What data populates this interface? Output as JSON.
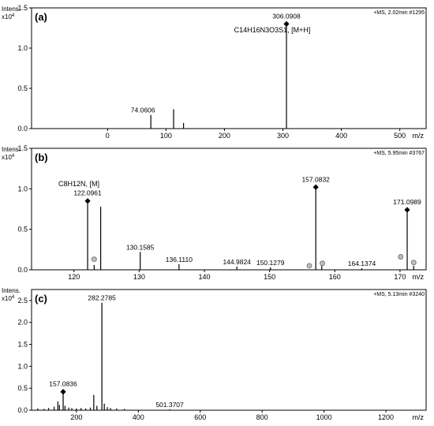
{
  "chart_data": [
    {
      "type": "bar",
      "panel_label": "(a)",
      "ylabel": "Intens.",
      "yscale": "x10",
      "yscale_exp": "4",
      "xlabel": "m/z",
      "info": "+MS, 2.02min #1295",
      "formula": "C14H16N3O3S1, [M+H]",
      "xlim": [
        -130,
        545
      ],
      "ylim": [
        0,
        1.5
      ],
      "xticks": [
        0,
        100,
        200,
        300,
        400,
        500
      ],
      "yticks": [
        0.0,
        0.5,
        1.0,
        1.5
      ],
      "peaks": [
        {
          "x": 74.0606,
          "y": 0.17
        },
        {
          "x": 113,
          "y": 0.24
        },
        {
          "x": 130,
          "y": 0.07
        },
        {
          "x": 306.0908,
          "y": 1.3
        }
      ],
      "labels": [
        {
          "x": 74.0606,
          "text": "74.0606"
        },
        {
          "x": 306.0908,
          "text": "306.0908"
        }
      ],
      "markers": [
        {
          "x": 306.0908,
          "y": 1.3,
          "shape": "diamond"
        }
      ]
    },
    {
      "type": "bar",
      "panel_label": "(b)",
      "ylabel": "Intens.",
      "yscale": "x10",
      "yscale_exp": "4",
      "xlabel": "m/z",
      "info": "+MS, 5.95min #3767",
      "formula": "C8H12N, [M]",
      "xlim": [
        113.5,
        174
      ],
      "ylim": [
        0,
        1.5
      ],
      "xticks": [
        120,
        130,
        140,
        150,
        160,
        170
      ],
      "yticks": [
        0.0,
        0.5,
        1.0,
        1.5
      ],
      "peaks": [
        {
          "x": 122.0961,
          "y": 0.85
        },
        {
          "x": 123.1,
          "y": 0.06
        },
        {
          "x": 124.1,
          "y": 0.78
        },
        {
          "x": 130.1585,
          "y": 0.22
        },
        {
          "x": 136.111,
          "y": 0.07
        },
        {
          "x": 144.9824,
          "y": 0.04
        },
        {
          "x": 150.1279,
          "y": 0.03
        },
        {
          "x": 157.0832,
          "y": 1.02
        },
        {
          "x": 158.0,
          "y": 0.05
        },
        {
          "x": 164.1374,
          "y": 0.02
        },
        {
          "x": 171.0989,
          "y": 0.74
        },
        {
          "x": 172.1,
          "y": 0.05
        }
      ],
      "labels": [
        {
          "x": 122.0961,
          "text": "122.0961"
        },
        {
          "x": 130.1585,
          "text": "130.1585"
        },
        {
          "x": 136.111,
          "text": "136.1110"
        },
        {
          "x": 144.9824,
          "text": "144.9824"
        },
        {
          "x": 150.1279,
          "text": "150.1279"
        },
        {
          "x": 157.0832,
          "text": "157.0832"
        },
        {
          "x": 164.1374,
          "text": "164.1374"
        },
        {
          "x": 171.0989,
          "text": "171.0989"
        }
      ],
      "markers": [
        {
          "x": 122.0961,
          "y": 0.85,
          "shape": "diamond"
        },
        {
          "x": 123.1,
          "y": 0.13,
          "shape": "circle"
        },
        {
          "x": 157.0832,
          "y": 1.02,
          "shape": "diamond"
        },
        {
          "x": 156.1,
          "y": 0.05,
          "shape": "circle"
        },
        {
          "x": 158.1,
          "y": 0.08,
          "shape": "circle"
        },
        {
          "x": 171.0989,
          "y": 0.74,
          "shape": "diamond"
        },
        {
          "x": 170.1,
          "y": 0.16,
          "shape": "circle"
        },
        {
          "x": 172.1,
          "y": 0.09,
          "shape": "circle"
        }
      ]
    },
    {
      "type": "bar",
      "panel_label": "(c)",
      "ylabel": "Intens.",
      "yscale": "x10",
      "yscale_exp": "4",
      "xlabel": "m/z",
      "info": "+MS, 5.13min #3240",
      "formula": "",
      "xlim": [
        55,
        1330
      ],
      "ylim": [
        0,
        2.75
      ],
      "xticks": [
        200,
        400,
        600,
        800,
        1000,
        1200
      ],
      "yticks": [
        0.0,
        0.5,
        1.0,
        1.5,
        2.0,
        2.5
      ],
      "peaks": [
        {
          "x": 75,
          "y": 0.04
        },
        {
          "x": 95,
          "y": 0.03
        },
        {
          "x": 110,
          "y": 0.05
        },
        {
          "x": 128,
          "y": 0.08
        },
        {
          "x": 140,
          "y": 0.2
        },
        {
          "x": 145,
          "y": 0.12
        },
        {
          "x": 157.0836,
          "y": 0.42
        },
        {
          "x": 163,
          "y": 0.1
        },
        {
          "x": 175,
          "y": 0.06
        },
        {
          "x": 185,
          "y": 0.05
        },
        {
          "x": 200,
          "y": 0.04
        },
        {
          "x": 215,
          "y": 0.05
        },
        {
          "x": 230,
          "y": 0.04
        },
        {
          "x": 245,
          "y": 0.06
        },
        {
          "x": 256,
          "y": 0.35
        },
        {
          "x": 266,
          "y": 0.1
        },
        {
          "x": 282.2785,
          "y": 2.45
        },
        {
          "x": 290,
          "y": 0.15
        },
        {
          "x": 300,
          "y": 0.07
        },
        {
          "x": 310,
          "y": 0.05
        },
        {
          "x": 330,
          "y": 0.04
        },
        {
          "x": 355,
          "y": 0.03
        },
        {
          "x": 501.3707,
          "y": 0.02
        }
      ],
      "labels": [
        {
          "x": 157.0836,
          "text": "157.0836"
        },
        {
          "x": 282.2785,
          "text": "282.2785"
        },
        {
          "x": 501.3707,
          "text": "501.3707"
        }
      ],
      "markers": [
        {
          "x": 157.0836,
          "y": 0.42,
          "shape": "diamond"
        }
      ]
    }
  ]
}
